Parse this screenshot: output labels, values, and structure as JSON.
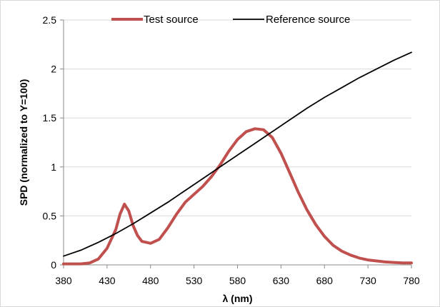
{
  "chart_data": {
    "type": "line",
    "title": "",
    "xlabel": "λ (nm)",
    "ylabel": "SPD (normalized to Y=100)",
    "xlim": [
      380,
      780
    ],
    "ylim": [
      0,
      2.5
    ],
    "x_ticks": [
      "380",
      "430",
      "480",
      "530",
      "580",
      "630",
      "680",
      "730",
      "780"
    ],
    "y_ticks": [
      "0",
      "0.5",
      "1",
      "1.5",
      "2",
      "2.5"
    ],
    "grid": "horizontal",
    "legend_position": "top",
    "series": [
      {
        "name": "Test source",
        "color": "#c0504d",
        "line_width": "thick",
        "points": [
          [
            380,
            0.01
          ],
          [
            400,
            0.01
          ],
          [
            410,
            0.02
          ],
          [
            420,
            0.06
          ],
          [
            430,
            0.17
          ],
          [
            440,
            0.36
          ],
          [
            445,
            0.52
          ],
          [
            450,
            0.62
          ],
          [
            455,
            0.55
          ],
          [
            460,
            0.4
          ],
          [
            465,
            0.3
          ],
          [
            470,
            0.24
          ],
          [
            480,
            0.22
          ],
          [
            490,
            0.26
          ],
          [
            500,
            0.38
          ],
          [
            510,
            0.52
          ],
          [
            520,
            0.64
          ],
          [
            530,
            0.72
          ],
          [
            540,
            0.8
          ],
          [
            550,
            0.9
          ],
          [
            560,
            1.02
          ],
          [
            570,
            1.16
          ],
          [
            580,
            1.28
          ],
          [
            590,
            1.36
          ],
          [
            600,
            1.39
          ],
          [
            610,
            1.38
          ],
          [
            620,
            1.3
          ],
          [
            630,
            1.14
          ],
          [
            640,
            0.94
          ],
          [
            650,
            0.74
          ],
          [
            660,
            0.56
          ],
          [
            670,
            0.41
          ],
          [
            680,
            0.29
          ],
          [
            690,
            0.2
          ],
          [
            700,
            0.14
          ],
          [
            710,
            0.1
          ],
          [
            720,
            0.07
          ],
          [
            730,
            0.05
          ],
          [
            740,
            0.04
          ],
          [
            750,
            0.03
          ],
          [
            760,
            0.025
          ],
          [
            770,
            0.02
          ],
          [
            780,
            0.02
          ]
        ]
      },
      {
        "name": "Reference source",
        "color": "#000000",
        "line_width": "thin",
        "points": [
          [
            380,
            0.09
          ],
          [
            400,
            0.15
          ],
          [
            420,
            0.23
          ],
          [
            440,
            0.32
          ],
          [
            460,
            0.42
          ],
          [
            480,
            0.53
          ],
          [
            500,
            0.64
          ],
          [
            520,
            0.76
          ],
          [
            540,
            0.88
          ],
          [
            560,
            1.0
          ],
          [
            580,
            1.12
          ],
          [
            600,
            1.24
          ],
          [
            620,
            1.36
          ],
          [
            640,
            1.48
          ],
          [
            660,
            1.6
          ],
          [
            680,
            1.71
          ],
          [
            700,
            1.81
          ],
          [
            720,
            1.91
          ],
          [
            740,
            2.0
          ],
          [
            760,
            2.09
          ],
          [
            780,
            2.17
          ]
        ]
      }
    ]
  }
}
